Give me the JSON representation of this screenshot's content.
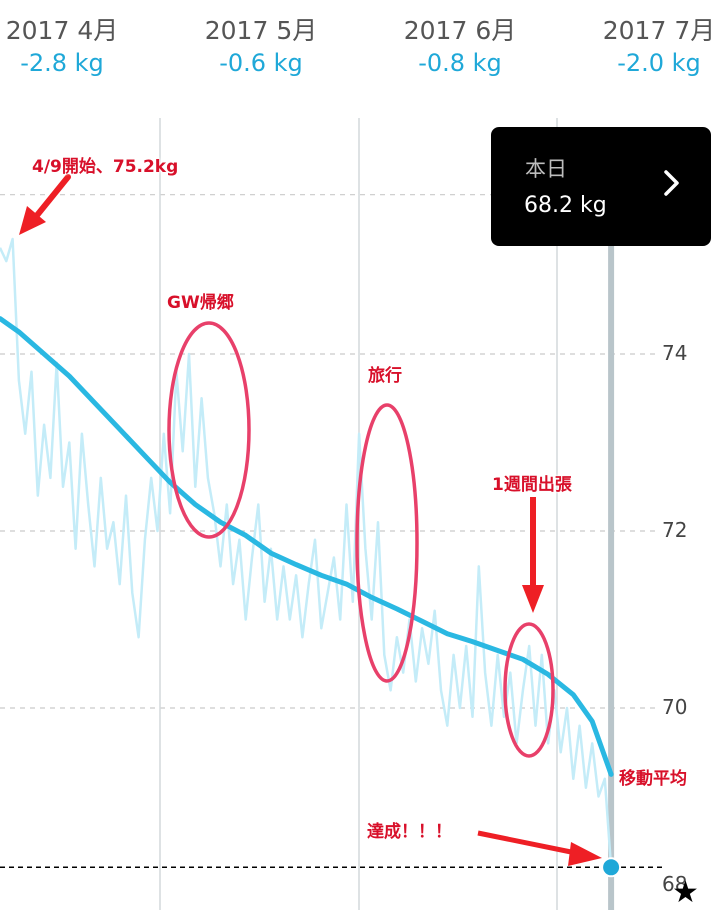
{
  "months": [
    {
      "label": "2017 4月",
      "delta": "-2.8 kg"
    },
    {
      "label": "2017 5月",
      "delta": "-0.6 kg"
    },
    {
      "label": "2017 6月",
      "delta": "-0.8 kg"
    },
    {
      "label": "2017 7月",
      "delta": "-2.0 kg"
    }
  ],
  "tooltip": {
    "title": "本日",
    "value": "68.2 kg",
    "icon": "chevron-right-icon"
  },
  "annotations": {
    "start": "4/9開始、75.2kg",
    "gw": "GW帰郷",
    "trip": "旅行",
    "business": "1週間出張",
    "average": "移動平均",
    "achieved": "達成！！！"
  },
  "goal_icon": "star-icon",
  "colors": {
    "daily": "#c4ecf8",
    "average": "#2ab8e2",
    "accent": "#1fa8d8",
    "annotation": "#e8203a",
    "today_line": "#b9c5ca"
  },
  "chart_data": {
    "type": "line",
    "x_ticks": [
      "2017 4月",
      "2017 5月",
      "2017 6月",
      "2017 7月"
    ],
    "y_ticks": [
      74,
      72,
      70,
      68
    ],
    "ylim": [
      67.9,
      76.2
    ],
    "grid": true,
    "goal": 68.2,
    "series": [
      {
        "name": "移動平均",
        "points": [
          [
            0,
            74.4
          ],
          [
            3,
            74.25
          ],
          [
            7,
            74.0
          ],
          [
            11,
            73.75
          ],
          [
            15,
            73.45
          ],
          [
            19,
            73.15
          ],
          [
            23,
            72.85
          ],
          [
            27,
            72.55
          ],
          [
            31,
            72.3
          ],
          [
            35,
            72.1
          ],
          [
            39,
            71.95
          ],
          [
            43,
            71.75
          ],
          [
            47,
            71.62
          ],
          [
            51,
            71.5
          ],
          [
            55,
            71.4
          ],
          [
            59,
            71.25
          ],
          [
            63,
            71.12
          ],
          [
            67,
            70.98
          ],
          [
            71,
            70.84
          ],
          [
            75,
            70.75
          ],
          [
            79,
            70.65
          ],
          [
            83,
            70.55
          ],
          [
            87,
            70.38
          ],
          [
            91,
            70.15
          ],
          [
            94,
            69.85
          ],
          [
            97,
            69.25
          ]
        ]
      },
      {
        "name": "",
        "points": [
          [
            0,
            75.2
          ],
          [
            1,
            75.05
          ],
          [
            2,
            75.3
          ],
          [
            3,
            73.7
          ],
          [
            4,
            73.1
          ],
          [
            5,
            73.8
          ],
          [
            6,
            72.4
          ],
          [
            7,
            73.2
          ],
          [
            8,
            72.6
          ],
          [
            9,
            73.9
          ],
          [
            10,
            72.5
          ],
          [
            11,
            73.0
          ],
          [
            12,
            71.8
          ],
          [
            13,
            73.1
          ],
          [
            14,
            72.3
          ],
          [
            15,
            71.6
          ],
          [
            16,
            72.6
          ],
          [
            17,
            71.8
          ],
          [
            18,
            72.1
          ],
          [
            19,
            71.4
          ],
          [
            20,
            72.4
          ],
          [
            21,
            71.3
          ],
          [
            22,
            70.8
          ],
          [
            23,
            71.9
          ],
          [
            24,
            72.6
          ],
          [
            25,
            72.0
          ],
          [
            26,
            73.1
          ],
          [
            27,
            72.2
          ],
          [
            28,
            73.8
          ],
          [
            29,
            72.9
          ],
          [
            30,
            74.0
          ],
          [
            31,
            72.5
          ],
          [
            32,
            73.5
          ],
          [
            33,
            72.6
          ],
          [
            34,
            72.2
          ],
          [
            35,
            71.6
          ],
          [
            36,
            72.3
          ],
          [
            37,
            71.4
          ],
          [
            38,
            71.9
          ],
          [
            39,
            71.0
          ],
          [
            40,
            71.7
          ],
          [
            41,
            72.3
          ],
          [
            42,
            71.2
          ],
          [
            43,
            71.8
          ],
          [
            44,
            71.0
          ],
          [
            45,
            71.6
          ],
          [
            46,
            71.0
          ],
          [
            47,
            71.5
          ],
          [
            48,
            70.8
          ],
          [
            49,
            71.4
          ],
          [
            50,
            71.9
          ],
          [
            51,
            70.9
          ],
          [
            52,
            71.3
          ],
          [
            53,
            71.7
          ],
          [
            54,
            71.0
          ],
          [
            55,
            72.3
          ],
          [
            56,
            71.2
          ],
          [
            57,
            73.1
          ],
          [
            58,
            71.8
          ],
          [
            59,
            71.0
          ],
          [
            60,
            72.1
          ],
          [
            61,
            70.6
          ],
          [
            62,
            70.2
          ],
          [
            63,
            70.8
          ],
          [
            64,
            70.4
          ],
          [
            65,
            71.0
          ],
          [
            66,
            70.3
          ],
          [
            67,
            70.9
          ],
          [
            68,
            70.5
          ],
          [
            69,
            71.1
          ],
          [
            70,
            70.2
          ],
          [
            71,
            69.8
          ],
          [
            72,
            70.6
          ],
          [
            73,
            70.0
          ],
          [
            74,
            70.7
          ],
          [
            75,
            69.9
          ],
          [
            76,
            71.6
          ],
          [
            77,
            70.4
          ],
          [
            78,
            69.8
          ],
          [
            79,
            70.6
          ],
          [
            80,
            69.9
          ],
          [
            81,
            70.4
          ],
          [
            82,
            69.6
          ],
          [
            83,
            70.2
          ],
          [
            84,
            70.7
          ],
          [
            85,
            69.8
          ],
          [
            86,
            70.6
          ],
          [
            87,
            69.6
          ],
          [
            88,
            70.2
          ],
          [
            89,
            69.5
          ],
          [
            90,
            70.0
          ],
          [
            91,
            69.2
          ],
          [
            92,
            69.8
          ],
          [
            93,
            69.1
          ],
          [
            94,
            69.6
          ],
          [
            95,
            69.0
          ],
          [
            96,
            69.2
          ],
          [
            97,
            68.2
          ]
        ]
      }
    ]
  }
}
